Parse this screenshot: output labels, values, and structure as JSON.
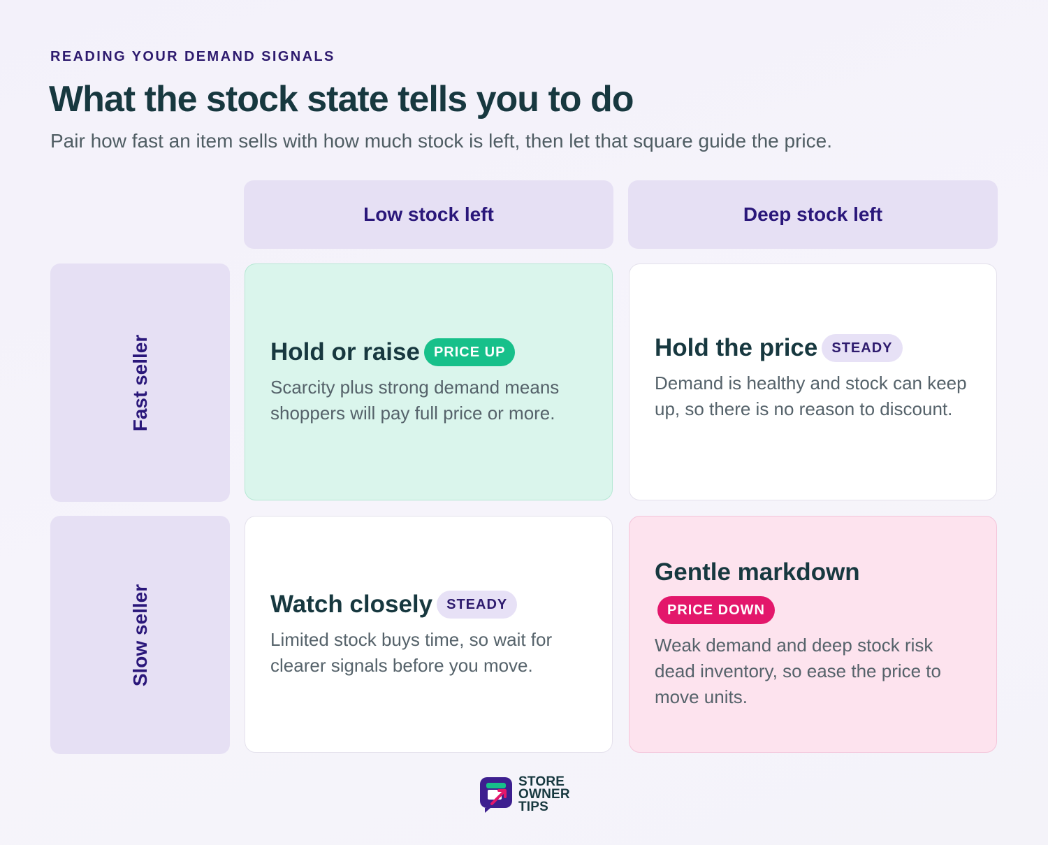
{
  "header": {
    "eyebrow": "READING YOUR DEMAND SIGNALS",
    "title": "What the stock state tells you to do",
    "subtitle": "Pair how fast an item sells with how much stock is left, then let that square guide the price."
  },
  "columns": [
    "Low stock left",
    "Deep stock left"
  ],
  "rows": [
    "Fast seller",
    "Slow seller"
  ],
  "cells": [
    {
      "title": "Hold or raise",
      "badge": "PRICE UP",
      "body": "Scarcity plus strong demand means shoppers will pay full price or more."
    },
    {
      "title": "Hold the price",
      "badge": "STEADY",
      "body": "Demand is healthy and stock can keep up, so there is no reason to discount."
    },
    {
      "title": "Watch closely",
      "badge": "STEADY",
      "body": "Limited stock buys time, so wait for clearer signals before you move."
    },
    {
      "title": "Gentle markdown",
      "badge": "PRICE DOWN",
      "body": "Weak demand and deep stock risk dead inventory, so ease the price to move units."
    }
  ],
  "colors": {
    "price_up": "#17c08a",
    "steady": "#e7e1f6",
    "price_down": "#e3176b",
    "header_bg": "#e6e0f4",
    "accent_text": "#2a177a"
  },
  "logo": {
    "icon": "store-logo-icon",
    "line1": "STORE",
    "line2": "OWNER",
    "line3": "TIPS"
  }
}
